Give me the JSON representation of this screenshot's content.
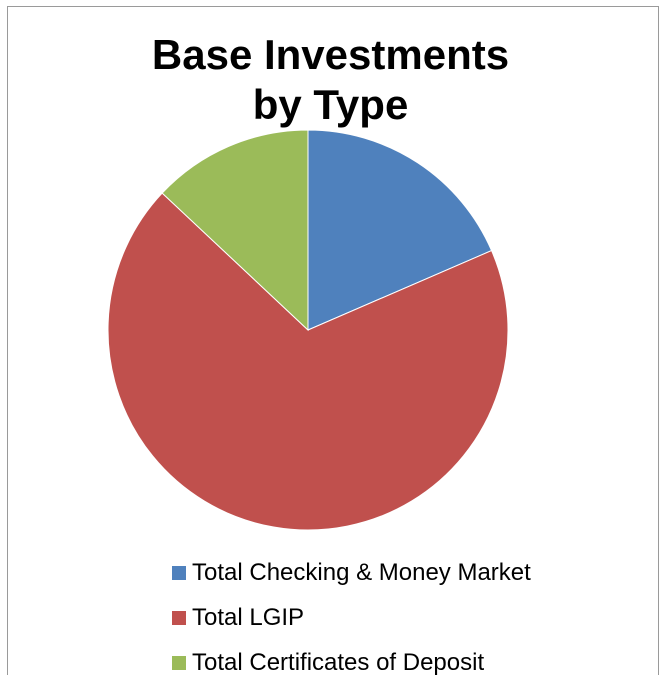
{
  "chart_data": {
    "type": "pie",
    "title_lines": [
      "Base Investments",
      "by Type"
    ],
    "categories": [
      "Total Checking & Money Market",
      "Total LGIP",
      "Total Certificates of Deposit"
    ],
    "values": [
      18.5,
      68.5,
      13.0
    ],
    "colors": [
      "#4f81bd",
      "#c0504d",
      "#9bbb59"
    ],
    "start_angle_deg": 0,
    "direction": "clockwise",
    "legend_position": "bottom"
  }
}
